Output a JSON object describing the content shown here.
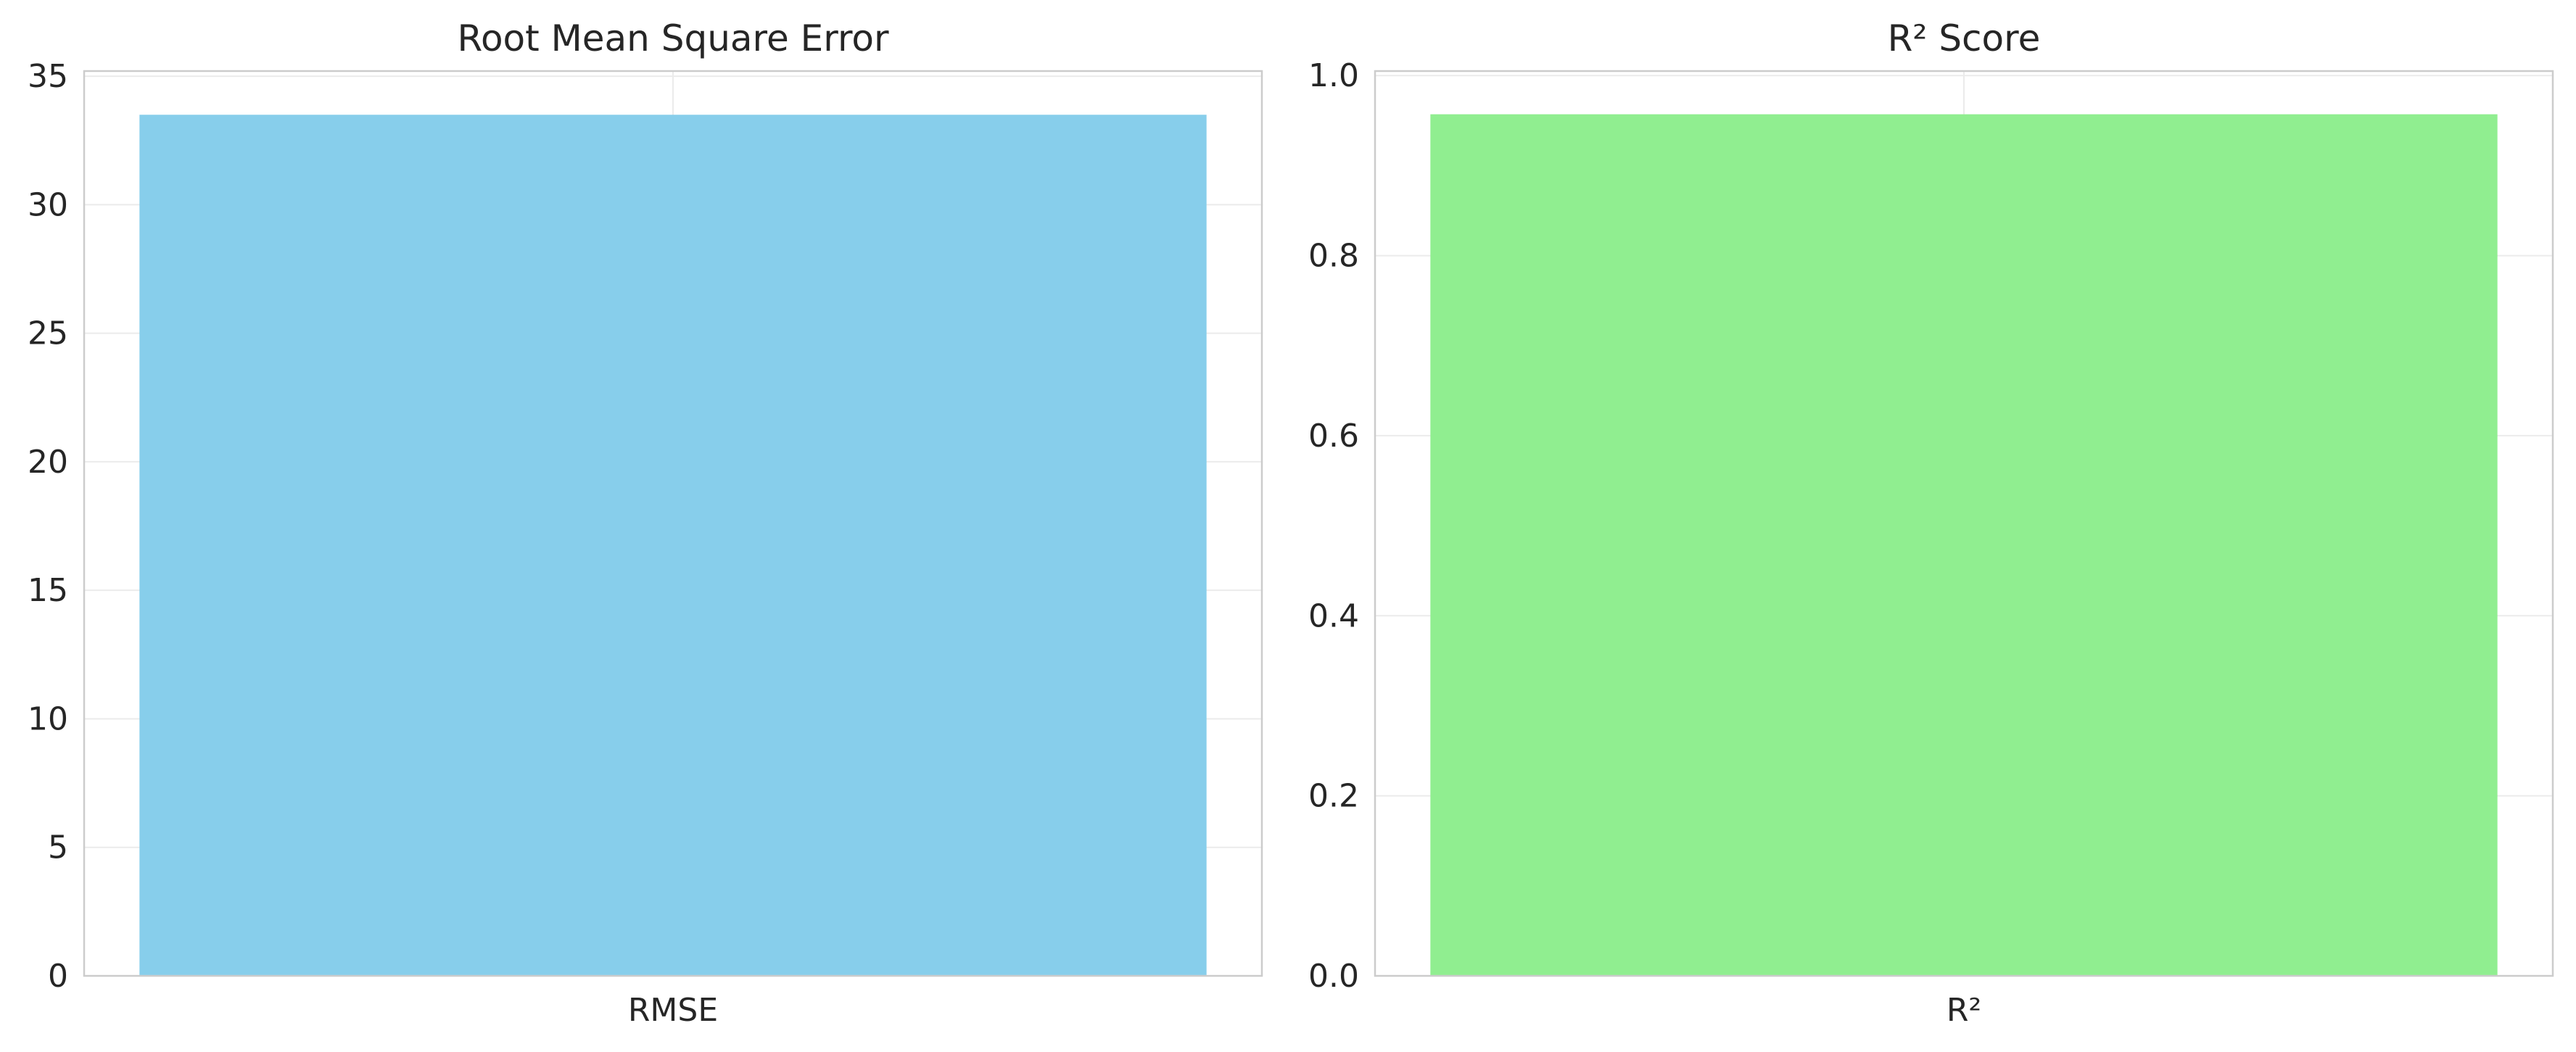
{
  "chart_data": [
    {
      "type": "bar",
      "title": "Root Mean Square Error",
      "xlabel": "",
      "ylabel": "",
      "categories": [
        "RMSE"
      ],
      "values": [
        33.5
      ],
      "ylim": [
        0,
        35.2
      ],
      "yticks": [
        0,
        5,
        10,
        15,
        20,
        25,
        30,
        35
      ],
      "ytick_labels": [
        "0",
        "5",
        "10",
        "15",
        "20",
        "25",
        "30",
        "35"
      ],
      "bar_color": "#87ceeb",
      "grid": true,
      "legend": false
    },
    {
      "type": "bar",
      "title": "R² Score",
      "xlabel": "",
      "ylabel": "",
      "categories": [
        "R²"
      ],
      "values": [
        0.957
      ],
      "ylim": [
        0,
        1.005
      ],
      "yticks": [
        0.0,
        0.2,
        0.4,
        0.6,
        0.8,
        1.0
      ],
      "ytick_labels": [
        "0.0",
        "0.2",
        "0.4",
        "0.6",
        "0.8",
        "1.0"
      ],
      "bar_color": "#90ee90",
      "grid": true,
      "legend": false
    }
  ]
}
